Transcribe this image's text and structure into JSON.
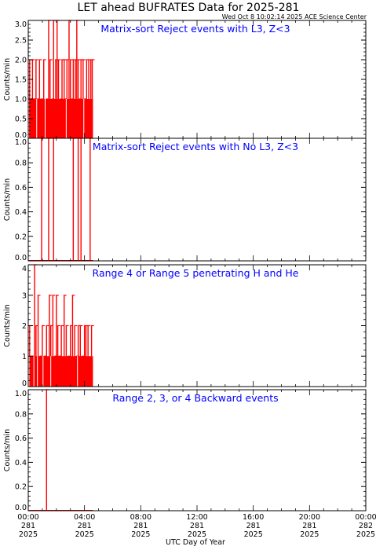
{
  "header": {
    "title": "LET ahead BUFRATES Data for 2025-281",
    "timestamp": "Wed Oct  8 10:02:14 2025 ACE Science Center"
  },
  "chart_data": {
    "type": "line",
    "title": "LET ahead BUFRATES Data for 2025-281",
    "xlabel": "UTC Day of Year",
    "x_unit": "hours",
    "xlim": [
      0,
      24
    ],
    "x_ticks": [
      {
        "label": [
          "00:00",
          "281",
          "2025"
        ],
        "x": 0
      },
      {
        "label": [
          "04:00",
          "281",
          "2025"
        ],
        "x": 4
      },
      {
        "label": [
          "08:00",
          "281",
          "2025"
        ],
        "x": 8
      },
      {
        "label": [
          "12:00",
          "281",
          "2025"
        ],
        "x": 12
      },
      {
        "label": [
          "16:00",
          "281",
          "2025"
        ],
        "x": 16
      },
      {
        "label": [
          "20:00",
          "281",
          "2025"
        ],
        "x": 20
      },
      {
        "label": [
          "00:00",
          "282",
          "2025"
        ],
        "x": 24
      }
    ],
    "series_color": "#ff0000",
    "panels": [
      {
        "title": "Matrix-sort Reject events with L3, Z<3",
        "ylabel": "Counts/min",
        "ylim": [
          0,
          3
        ],
        "yticks": [
          "0.0",
          "0.5",
          "1.0",
          "1.5",
          "2.0",
          "2.5",
          "3.0"
        ],
        "base_level": 1,
        "base_range": [
          0.0,
          4.6
        ],
        "spikes": [
          [
            0.1,
            2
          ],
          [
            0.2,
            1
          ],
          [
            0.3,
            2
          ],
          [
            0.4,
            1
          ],
          [
            0.5,
            1
          ],
          [
            0.55,
            2
          ],
          [
            0.7,
            1
          ],
          [
            0.8,
            2
          ],
          [
            0.95,
            1
          ],
          [
            1.1,
            2
          ],
          [
            1.3,
            1
          ],
          [
            1.45,
            3
          ],
          [
            1.55,
            2
          ],
          [
            1.7,
            1
          ],
          [
            1.8,
            3
          ],
          [
            1.95,
            2
          ],
          [
            2.05,
            3
          ],
          [
            2.15,
            2
          ],
          [
            2.3,
            1
          ],
          [
            2.4,
            2
          ],
          [
            2.55,
            2
          ],
          [
            2.6,
            1
          ],
          [
            2.75,
            2
          ],
          [
            2.9,
            3
          ],
          [
            3.0,
            2
          ],
          [
            3.1,
            1
          ],
          [
            3.2,
            2
          ],
          [
            3.35,
            2
          ],
          [
            3.45,
            3
          ],
          [
            3.55,
            2
          ],
          [
            3.65,
            1
          ],
          [
            3.75,
            2
          ],
          [
            3.9,
            2
          ],
          [
            4.0,
            1
          ],
          [
            4.15,
            2
          ],
          [
            4.3,
            2
          ],
          [
            4.45,
            2
          ],
          [
            4.55,
            2
          ]
        ],
        "gaps": [
          0.03,
          0.6,
          1.2,
          2.7,
          3.95
        ]
      },
      {
        "title": "Matrix-sort Reject events with No L3, Z<3",
        "ylabel": "Counts/min",
        "ylim": [
          0,
          1
        ],
        "yticks": [
          "0.0",
          "0.2",
          "0.4",
          "0.6",
          "0.8",
          "1.0"
        ],
        "base_level": 0,
        "base_range": [
          0.0,
          4.6
        ],
        "spikes": [
          [
            0.95,
            1
          ],
          [
            1.45,
            1
          ],
          [
            1.8,
            1
          ],
          [
            3.2,
            1
          ],
          [
            3.55,
            1
          ],
          [
            3.75,
            1
          ],
          [
            4.4,
            1
          ]
        ],
        "gaps": []
      },
      {
        "title": "Range 4 or Range 5 penetrating H and He",
        "ylabel": "Counts/min",
        "ylim": [
          0,
          4
        ],
        "yticks": [
          "0",
          "1",
          "2",
          "3",
          "4"
        ],
        "base_level": 1,
        "base_range": [
          0.0,
          4.6
        ],
        "spikes": [
          [
            0.1,
            2
          ],
          [
            0.25,
            1
          ],
          [
            0.45,
            4
          ],
          [
            0.55,
            2
          ],
          [
            0.7,
            3
          ],
          [
            0.85,
            1
          ],
          [
            1.0,
            2
          ],
          [
            1.15,
            1
          ],
          [
            1.3,
            2
          ],
          [
            1.5,
            3
          ],
          [
            1.6,
            2
          ],
          [
            1.75,
            3
          ],
          [
            1.9,
            1
          ],
          [
            2.0,
            3
          ],
          [
            2.1,
            2
          ],
          [
            2.2,
            1
          ],
          [
            2.35,
            2
          ],
          [
            2.55,
            3
          ],
          [
            2.7,
            2
          ],
          [
            2.85,
            1
          ],
          [
            3.0,
            2
          ],
          [
            3.15,
            3
          ],
          [
            3.3,
            2
          ],
          [
            3.45,
            1
          ],
          [
            3.55,
            2
          ],
          [
            3.7,
            2
          ],
          [
            3.85,
            1
          ],
          [
            4.0,
            2
          ],
          [
            4.1,
            2
          ],
          [
            4.25,
            2
          ],
          [
            4.5,
            2
          ]
        ],
        "gaps": [
          0.05,
          0.4,
          0.65,
          1.05,
          1.6,
          3.5
        ]
      },
      {
        "title": "Range 2, 3, or 4 Backward events",
        "ylabel": "Counts/min",
        "ylim": [
          0,
          1
        ],
        "yticks": [
          "0.0",
          "0.2",
          "0.4",
          "0.6",
          "0.8",
          "1.0"
        ],
        "base_level": 0,
        "base_range": [
          0.0,
          4.6
        ],
        "spikes": [
          [
            1.3,
            1
          ]
        ],
        "gaps": []
      }
    ]
  }
}
